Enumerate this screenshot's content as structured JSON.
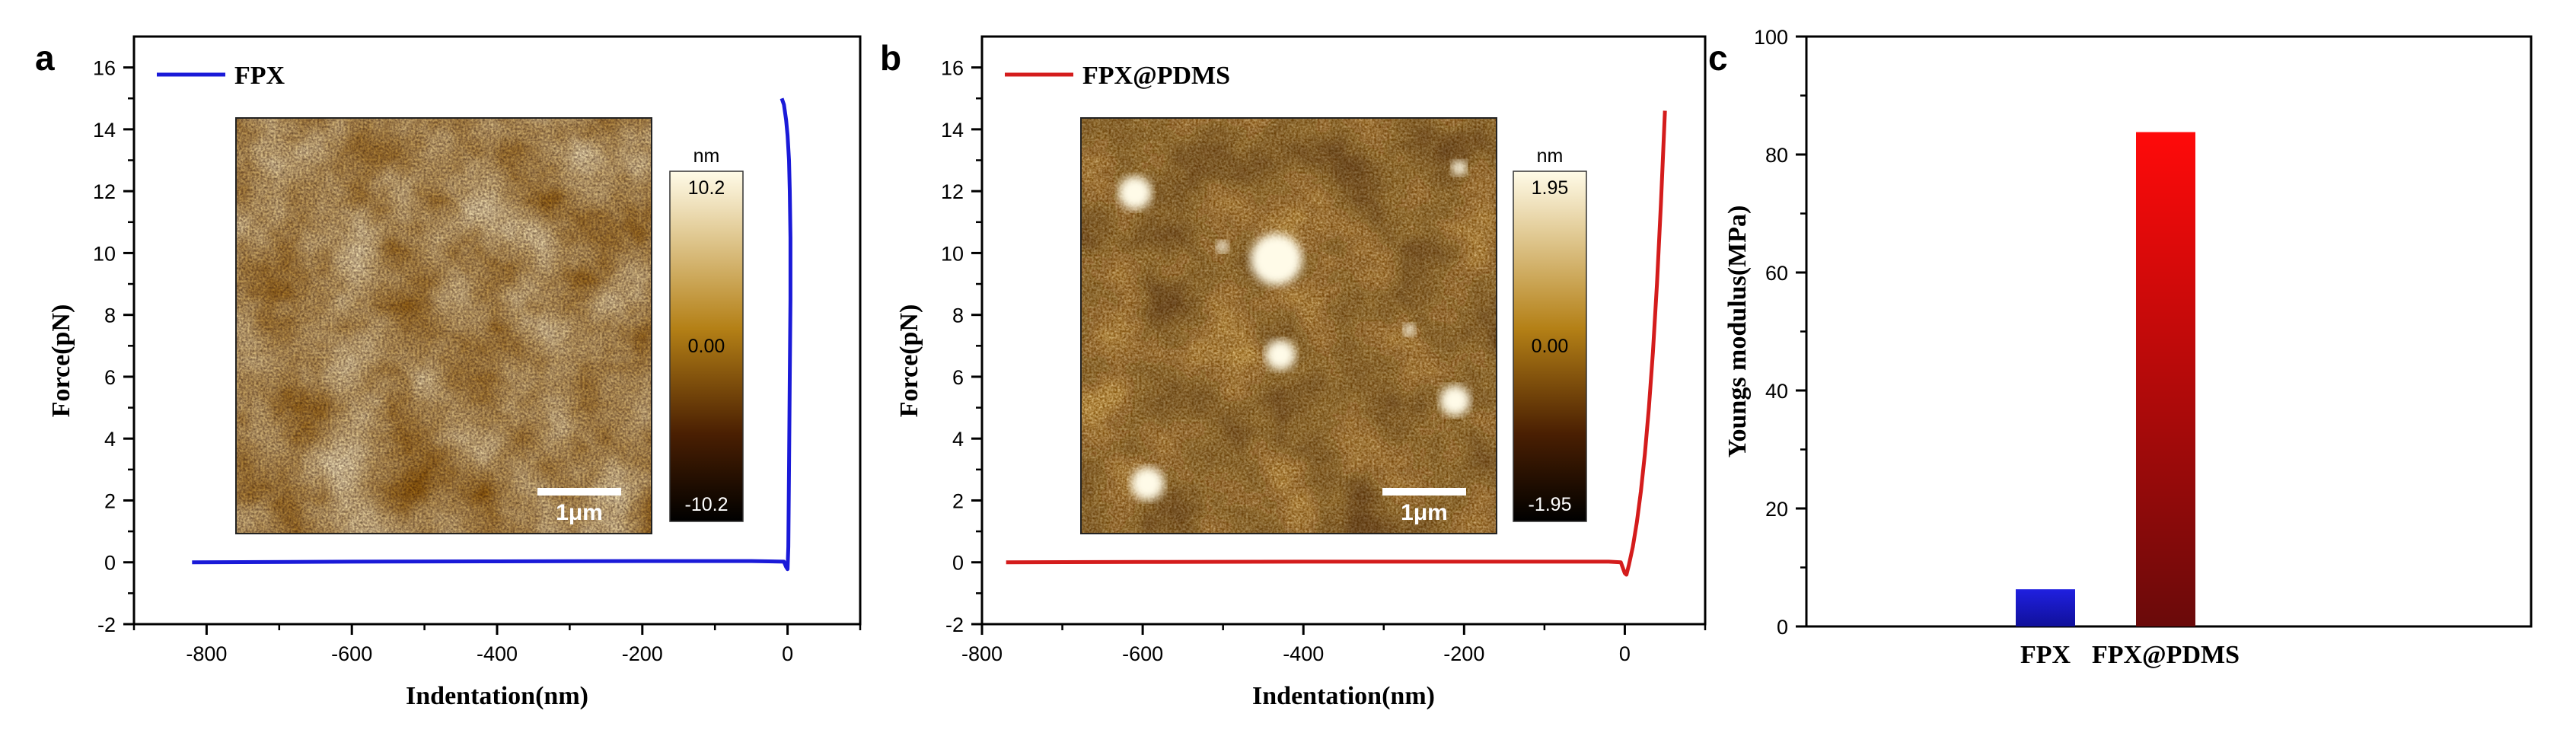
{
  "panels": {
    "a": {
      "letter": "a"
    },
    "b": {
      "letter": "b"
    },
    "c": {
      "letter": "c"
    }
  },
  "chart_data": [
    {
      "id": "a",
      "type": "line",
      "title": "",
      "xlabel": "Indentation(nm)",
      "ylabel": "Force(pN)",
      "xlim": [
        -900,
        100
      ],
      "ylim": [
        -2,
        17
      ],
      "xticks": [
        -800,
        -600,
        -400,
        -200,
        0
      ],
      "yticks": [
        -2,
        0,
        2,
        4,
        6,
        8,
        10,
        12,
        14,
        16
      ],
      "grid": false,
      "legend": "top-left",
      "series": [
        {
          "name": "FPX",
          "color": "#1a1ad8",
          "x": [
            -820,
            -600,
            -400,
            -200,
            -50,
            -5,
            -2,
            0,
            1,
            2,
            3,
            4,
            4,
            3,
            2,
            0,
            -2,
            -5,
            -8
          ],
          "y": [
            0,
            0.02,
            0.03,
            0.04,
            0.04,
            0.02,
            -0.15,
            -0.22,
            0.5,
            3.0,
            6.0,
            8.5,
            10.5,
            12.0,
            13.0,
            13.8,
            14.3,
            14.8,
            15.0
          ]
        }
      ],
      "inset": {
        "colorbar_unit": "nm",
        "colorbar_max": "10.2",
        "colorbar_mid": "0.00",
        "colorbar_min": "-10.2",
        "scalebar_label": "1μm"
      }
    },
    {
      "id": "b",
      "type": "line",
      "title": "",
      "xlabel": "Indentation(nm)",
      "ylabel": "Force(pN)",
      "xlim": [
        -800,
        100
      ],
      "ylim": [
        -2,
        17
      ],
      "xticks": [
        -800,
        -600,
        -400,
        -200,
        0
      ],
      "yticks": [
        -2,
        0,
        2,
        4,
        6,
        8,
        10,
        12,
        14,
        16
      ],
      "grid": false,
      "legend": "top-left",
      "series": [
        {
          "name": "FPX@PDMS",
          "color": "#d41c1c",
          "x": [
            -770,
            -600,
            -400,
            -200,
            -20,
            -5,
            0,
            2,
            5,
            10,
            15,
            20,
            25,
            30,
            35,
            40,
            45,
            50
          ],
          "y": [
            0,
            0.01,
            0.02,
            0.02,
            0.02,
            0.0,
            -0.35,
            -0.4,
            -0.1,
            0.5,
            1.3,
            2.3,
            3.5,
            5.0,
            6.8,
            9.0,
            11.6,
            14.6
          ]
        }
      ],
      "inset": {
        "colorbar_unit": "nm",
        "colorbar_max": "1.95",
        "colorbar_mid": "0.00",
        "colorbar_min": "-1.95",
        "scalebar_label": "1μm"
      }
    },
    {
      "id": "c",
      "type": "bar",
      "title": "",
      "xlabel": "",
      "ylabel": "Youngs modulus(MPa)",
      "ylim": [
        0,
        100
      ],
      "yticks": [
        0,
        20,
        40,
        60,
        80,
        100
      ],
      "grid": false,
      "categories": [
        "FPX",
        "FPX@PDMS"
      ],
      "values": [
        6.3,
        83.8
      ],
      "colors": [
        "#1f1fd6",
        "#e01010"
      ]
    }
  ]
}
